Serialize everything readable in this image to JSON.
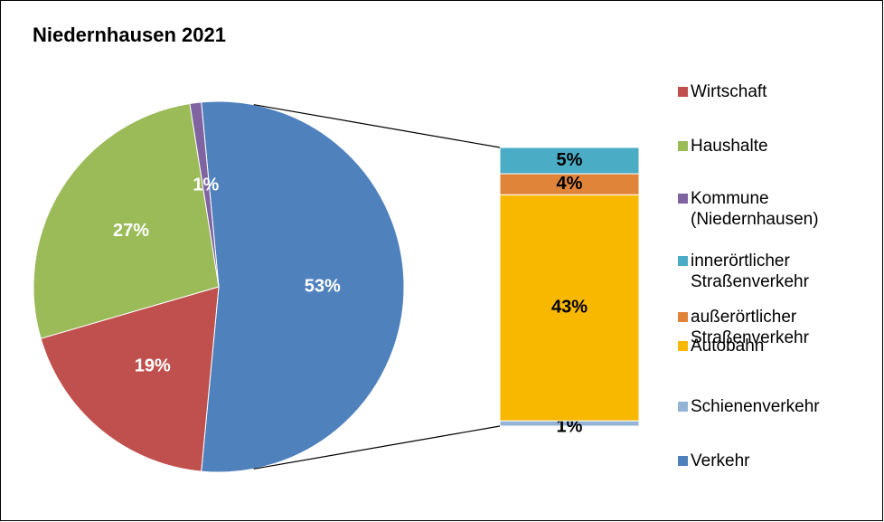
{
  "chart_data": {
    "type": "pie",
    "title": "Niedernhausen 2021",
    "categories": [
      "Wirtschaft",
      "Haushalte",
      "Kommune (Niedernhausen)",
      "Verkehr"
    ],
    "values": [
      19,
      27,
      1,
      53
    ],
    "value_labels": [
      "19%",
      "27%",
      "1%",
      "53%"
    ],
    "colors": [
      "#c0504d",
      "#9bbb59",
      "#8064a2",
      "#4f81bd"
    ],
    "breakdown": {
      "categories": [
        "innerörtlicher Straßenverkehr",
        "außerörtlicher Straßenverkehr",
        "Autobahn",
        "Schienenverkehr"
      ],
      "values": [
        5,
        4,
        43,
        1
      ],
      "value_labels": [
        "5%",
        "4%",
        "43%",
        "1%"
      ],
      "colors": [
        "#4bacc6",
        "#e0843a",
        "#f8b800",
        "#95b3d7"
      ]
    },
    "legend": "right"
  }
}
